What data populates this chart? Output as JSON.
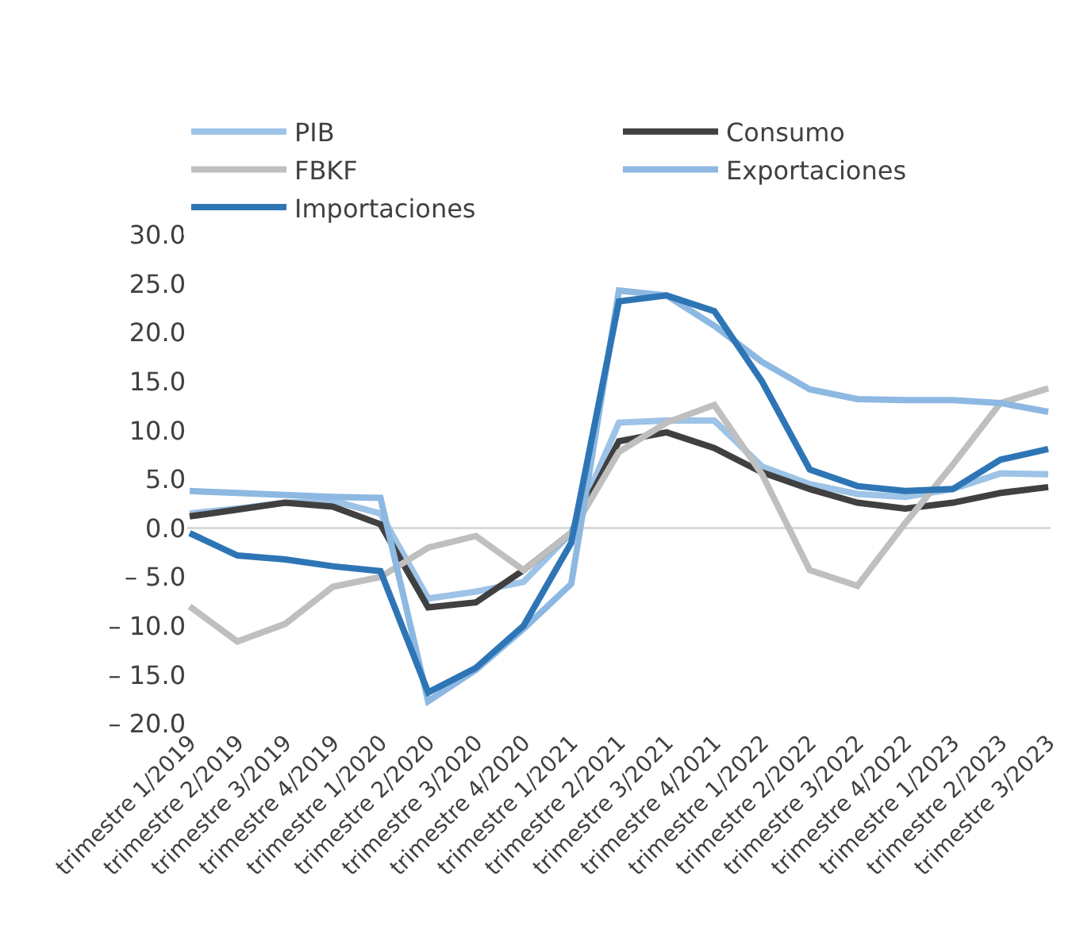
{
  "chart_data": {
    "type": "line",
    "categories": [
      "trimestre 1/2019",
      "trimestre 2/2019",
      "trimestre 3/2019",
      "trimestre 4/2019",
      "trimestre 1/2020",
      "trimestre 2/2020",
      "trimestre 3/2020",
      "trimestre 4/2020",
      "trimestre 1/2021",
      "trimestre 2/2021",
      "trimestre 3/2021",
      "trimestre 4/2021",
      "trimestre 1/2022",
      "trimestre 2/2022",
      "trimestre 3/2022",
      "trimestre 4/2022",
      "trimestre 1/2023",
      "trimestre 2/2023",
      "trimestre 3/2023"
    ],
    "series": [
      {
        "name": "PIB",
        "color": "#9dc3e6",
        "values": [
          1.5,
          2.0,
          2.6,
          2.8,
          1.5,
          -7.2,
          -6.5,
          -5.5,
          -0.5,
          10.8,
          11.0,
          11.0,
          6.3,
          4.5,
          3.5,
          3.2,
          4.0,
          5.6,
          5.5
        ]
      },
      {
        "name": "Consumo",
        "color": "#404040",
        "values": [
          1.2,
          1.9,
          2.6,
          2.2,
          0.4,
          -8.1,
          -7.6,
          -4.3,
          -0.5,
          8.9,
          9.8,
          8.2,
          5.7,
          4.0,
          2.6,
          2.0,
          2.6,
          3.6,
          4.2
        ]
      },
      {
        "name": "FBKF",
        "color": "#bfbfbf",
        "values": [
          -8.0,
          -11.6,
          -9.8,
          -6.0,
          -5.0,
          -2.0,
          -0.8,
          -4.3,
          -0.5,
          7.8,
          10.8,
          12.6,
          5.5,
          -4.3,
          -5.9,
          0.5,
          6.5,
          12.8,
          14.3
        ]
      },
      {
        "name": "Exportaciones",
        "color": "#8db8e2",
        "values": [
          3.8,
          3.6,
          3.4,
          3.2,
          3.1,
          -17.7,
          -14.5,
          -10.3,
          -5.7,
          24.3,
          23.8,
          20.7,
          17.0,
          14.2,
          13.2,
          13.1,
          13.1,
          12.8,
          11.9
        ]
      },
      {
        "name": "Importaciones",
        "color": "#2e75b6",
        "values": [
          -0.5,
          -2.8,
          -3.2,
          -3.9,
          -4.4,
          -16.8,
          -14.3,
          -10.0,
          -1.5,
          23.2,
          23.8,
          22.2,
          15.0,
          6.0,
          4.3,
          3.8,
          4.0,
          7.0,
          8.1
        ]
      }
    ],
    "ylim": [
      -20,
      30
    ],
    "yticks": [
      {
        "value": 30,
        "label": "30.0"
      },
      {
        "value": 25,
        "label": "25.0"
      },
      {
        "value": 20,
        "label": "20.0"
      },
      {
        "value": 15,
        "label": "15.0"
      },
      {
        "value": 10,
        "label": "10.0"
      },
      {
        "value": 5,
        "label": "5.0"
      },
      {
        "value": 0,
        "label": "0.0"
      },
      {
        "value": -5,
        "label": "– 5.0"
      },
      {
        "value": -10,
        "label": "– 10.0"
      },
      {
        "value": -15,
        "label": "– 15.0"
      },
      {
        "value": -20,
        "label": "– 20.0"
      }
    ],
    "ref_lines": [
      {
        "axis": "y",
        "value": 0,
        "color": "#d9d9d9",
        "line_style": "solid"
      }
    ],
    "grid": false,
    "legend": "top",
    "marker": "none",
    "line_style": "solid"
  }
}
